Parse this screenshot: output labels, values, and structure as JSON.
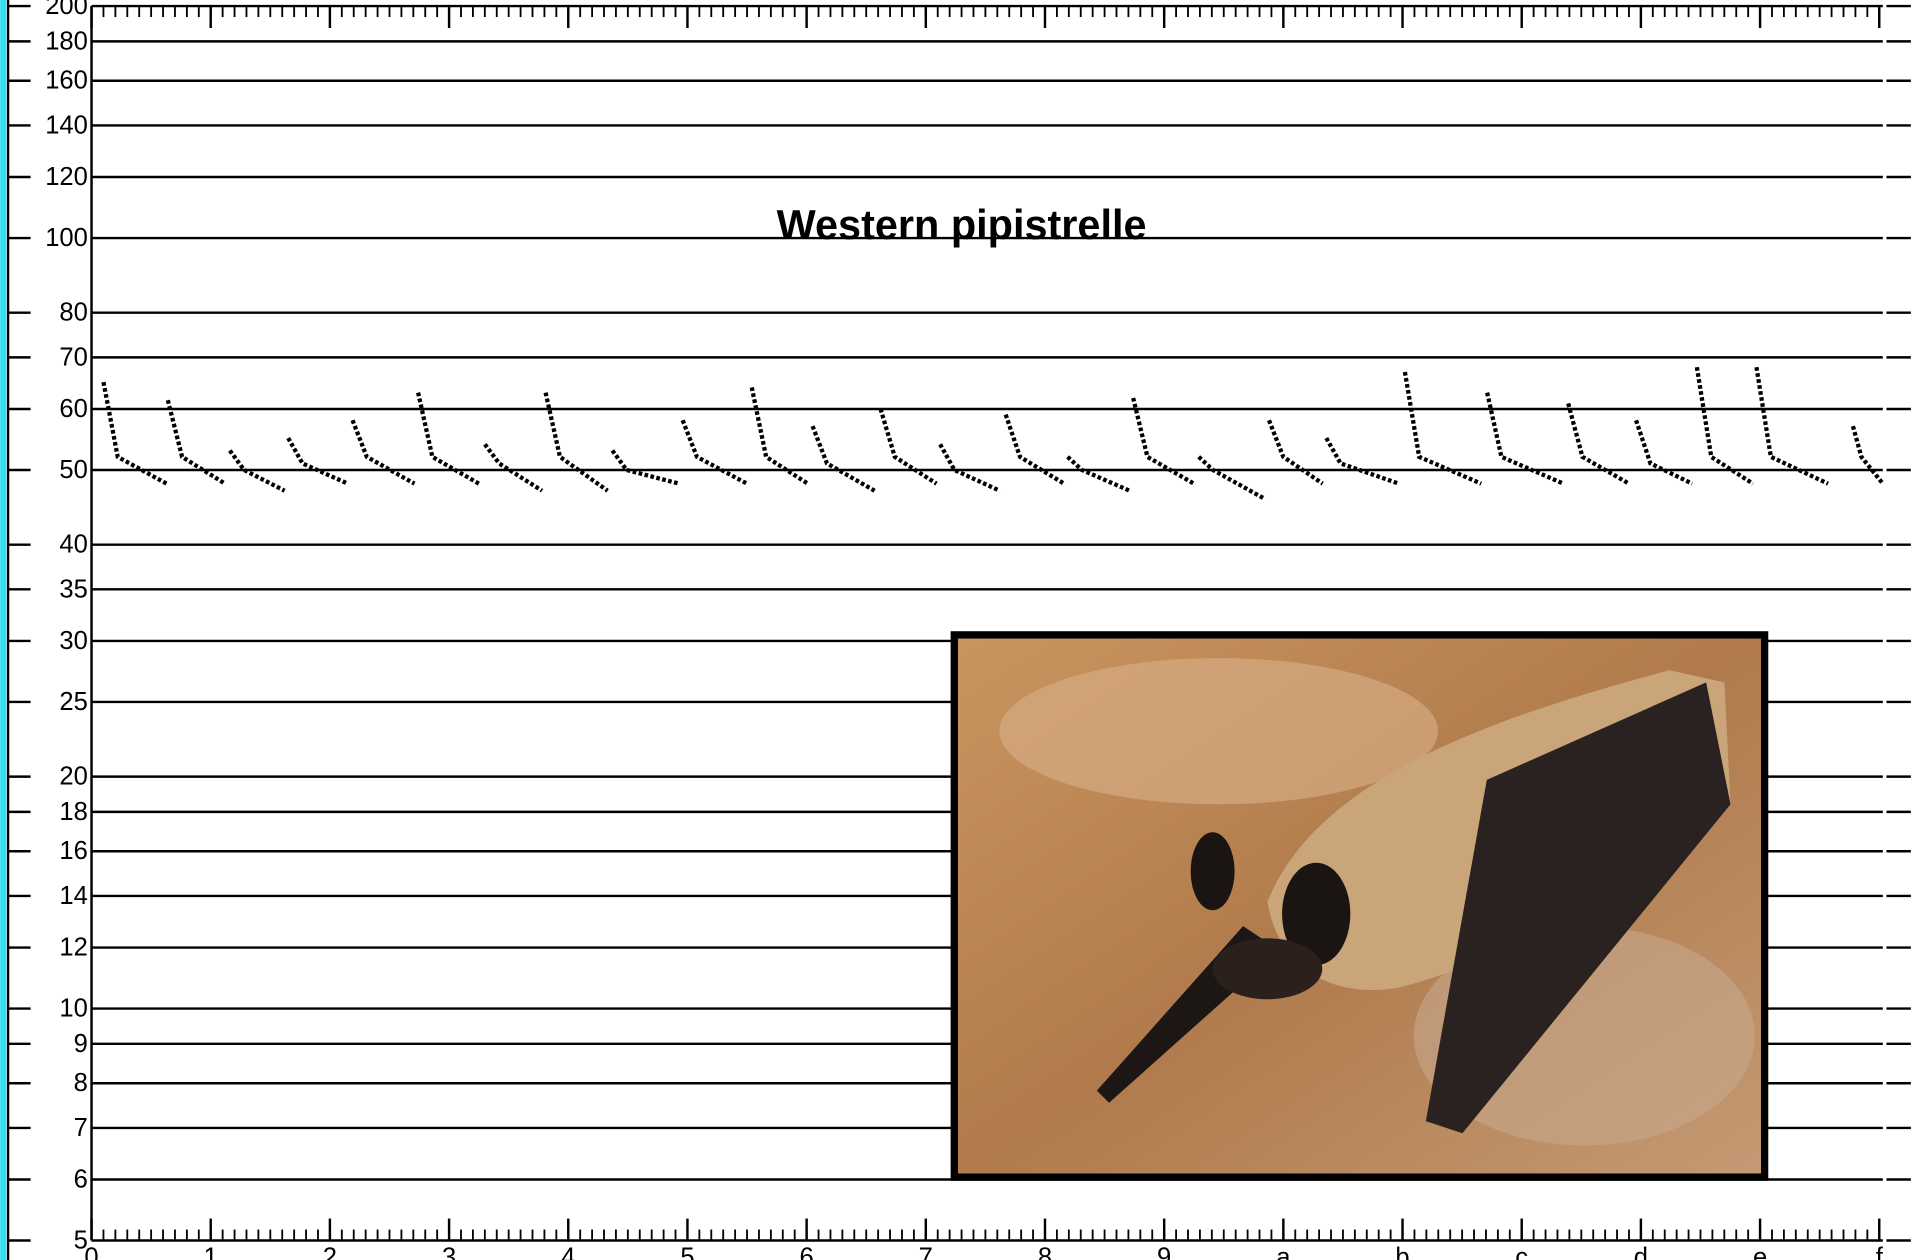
{
  "chart_data": {
    "type": "sonogram",
    "title": "Western pipistrelle",
    "log_y": true,
    "grid": true,
    "color": "#000000",
    "xlim": [
      0,
      15.03
    ],
    "ylim": [
      5,
      200
    ],
    "xticks": [
      0,
      1,
      2,
      3,
      4,
      5,
      6,
      7,
      8,
      9,
      {
        "value": 10,
        "label": "a"
      },
      {
        "value": 11,
        "label": "b"
      },
      {
        "value": 12,
        "label": "c"
      },
      {
        "value": 13,
        "label": "d"
      },
      {
        "value": 14,
        "label": "e"
      },
      {
        "value": 15,
        "label": "f"
      }
    ],
    "yticks": [
      5,
      6,
      7,
      8,
      9,
      10,
      12,
      14,
      16,
      18,
      20,
      25,
      30,
      35,
      40,
      50,
      60,
      70,
      80,
      100,
      120,
      140,
      160,
      180,
      200
    ],
    "calls": [
      {
        "x": [
          0.1,
          0.22,
          0.63
        ],
        "y": [
          65,
          52,
          48
        ]
      },
      {
        "x": [
          0.64,
          0.76,
          1.12
        ],
        "y": [
          61.6,
          52,
          48
        ]
      },
      {
        "x": [
          1.16,
          1.28,
          1.62
        ],
        "y": [
          53,
          50,
          47
        ]
      },
      {
        "x": [
          1.65,
          1.77,
          2.15
        ],
        "y": [
          55,
          51,
          48
        ]
      },
      {
        "x": [
          2.19,
          2.31,
          2.71
        ],
        "y": [
          58,
          52,
          48
        ]
      },
      {
        "x": [
          2.74,
          2.86,
          3.25
        ],
        "y": [
          63,
          52,
          48
        ]
      },
      {
        "x": [
          3.3,
          3.42,
          3.78
        ],
        "y": [
          54,
          51,
          47
        ]
      },
      {
        "x": [
          3.81,
          3.93,
          4.33
        ],
        "y": [
          63,
          52,
          47
        ]
      },
      {
        "x": [
          4.37,
          4.49,
          4.93
        ],
        "y": [
          53,
          50,
          48
        ]
      },
      {
        "x": [
          4.96,
          5.08,
          5.5
        ],
        "y": [
          58,
          52,
          48
        ]
      },
      {
        "x": [
          5.54,
          5.66,
          6.01
        ],
        "y": [
          64,
          52,
          48
        ]
      },
      {
        "x": [
          6.05,
          6.17,
          6.57
        ],
        "y": [
          57,
          51,
          47
        ]
      },
      {
        "x": [
          6.62,
          6.74,
          7.09
        ],
        "y": [
          60,
          52,
          48
        ]
      },
      {
        "x": [
          7.12,
          7.24,
          7.62
        ],
        "y": [
          54,
          50,
          47
        ]
      },
      {
        "x": [
          7.67,
          7.79,
          8.16
        ],
        "y": [
          59,
          52,
          48
        ]
      },
      {
        "x": [
          8.19,
          8.31,
          8.71
        ],
        "y": [
          52,
          50,
          47
        ]
      },
      {
        "x": [
          8.74,
          8.86,
          9.25
        ],
        "y": [
          62,
          52,
          48
        ]
      },
      {
        "x": [
          9.29,
          9.41,
          9.83
        ],
        "y": [
          52,
          50,
          46
        ]
      },
      {
        "x": [
          9.88,
          10.0,
          10.33
        ],
        "y": [
          58,
          52,
          48
        ]
      },
      {
        "x": [
          10.36,
          10.48,
          10.97
        ],
        "y": [
          55,
          51,
          48
        ]
      },
      {
        "x": [
          11.02,
          11.14,
          11.66
        ],
        "y": [
          67,
          52,
          48
        ]
      },
      {
        "x": [
          11.71,
          11.83,
          12.35
        ],
        "y": [
          63,
          52,
          48
        ]
      },
      {
        "x": [
          12.39,
          12.51,
          12.9
        ],
        "y": [
          61,
          52,
          48
        ]
      },
      {
        "x": [
          12.96,
          13.08,
          13.43
        ],
        "y": [
          58,
          51,
          48
        ]
      },
      {
        "x": [
          13.47,
          13.59,
          13.94
        ],
        "y": [
          68,
          52,
          48
        ]
      },
      {
        "x": [
          13.97,
          14.09,
          14.57
        ],
        "y": [
          68,
          52,
          48
        ]
      },
      {
        "x": [
          14.78,
          14.85,
          15.03
        ],
        "y": [
          57,
          52,
          48
        ]
      }
    ]
  }
}
